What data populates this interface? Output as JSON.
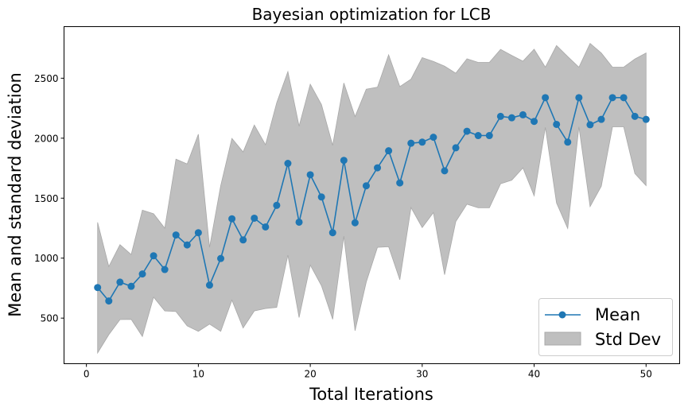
{
  "chart_data": {
    "type": "line",
    "title": "Bayesian optimization for LCB",
    "xlabel": "Total Iterations",
    "ylabel": "Mean and standard deviation",
    "xlim": [
      -2,
      53
    ],
    "ylim": [
      120,
      2930
    ],
    "xticks": [
      0,
      10,
      20,
      30,
      40,
      50
    ],
    "yticks": [
      500,
      1000,
      1500,
      2000,
      2500
    ],
    "grid": false,
    "legend_position": "bottom-right",
    "legend": [
      {
        "label": "Mean",
        "kind": "line-marker",
        "color": "#1f77b4"
      },
      {
        "label": "Std Dev",
        "kind": "patch",
        "color": "#bfbfbf"
      }
    ],
    "x": [
      1,
      2,
      3,
      4,
      5,
      6,
      7,
      8,
      9,
      10,
      11,
      12,
      13,
      14,
      15,
      16,
      17,
      18,
      19,
      20,
      21,
      22,
      23,
      24,
      25,
      26,
      27,
      28,
      29,
      30,
      31,
      32,
      33,
      34,
      35,
      36,
      37,
      38,
      39,
      40,
      41,
      42,
      43,
      44,
      45,
      46,
      47,
      48,
      49,
      50
    ],
    "series": [
      {
        "name": "Mean",
        "color": "#1f77b4",
        "values": [
          755,
          643,
          800,
          765,
          868,
          1020,
          905,
          1193,
          1110,
          1212,
          775,
          997,
          1328,
          1152,
          1333,
          1260,
          1440,
          1790,
          1300,
          1695,
          1510,
          1212,
          1815,
          1295,
          1603,
          1753,
          1895,
          1627,
          1958,
          1967,
          2008,
          1728,
          1920,
          2058,
          2022,
          2022,
          2182,
          2170,
          2195,
          2140,
          2338,
          2115,
          1967,
          2338,
          2112,
          2157,
          2338,
          2338,
          2182,
          2157
        ]
      },
      {
        "name": "Std Dev",
        "color": "#bfbfbf",
        "upper": [
          1298,
          930,
          1112,
          1030,
          1400,
          1370,
          1250,
          1825,
          1785,
          2033,
          1090,
          1605,
          1998,
          1885,
          2110,
          1945,
          2295,
          2555,
          2100,
          2450,
          2280,
          1940,
          2460,
          2180,
          2408,
          2425,
          2695,
          2430,
          2492,
          2672,
          2640,
          2600,
          2542,
          2662,
          2632,
          2632,
          2740,
          2690,
          2642,
          2742,
          2592,
          2772,
          2680,
          2592,
          2790,
          2710,
          2592,
          2592,
          2660,
          2710
        ],
        "lower": [
          210,
          362,
          488,
          490,
          347,
          675,
          560,
          555,
          435,
          390,
          450,
          390,
          650,
          418,
          560,
          580,
          590,
          1025,
          505,
          942,
          770,
          490,
          1183,
          395,
          800,
          1090,
          1095,
          820,
          1422,
          1255,
          1380,
          862,
          1305,
          1450,
          1420,
          1420,
          1620,
          1650,
          1752,
          1520,
          2090,
          1460,
          1248,
          2095,
          1430,
          1600,
          2095,
          2095,
          1705,
          1605
        ]
      }
    ]
  }
}
